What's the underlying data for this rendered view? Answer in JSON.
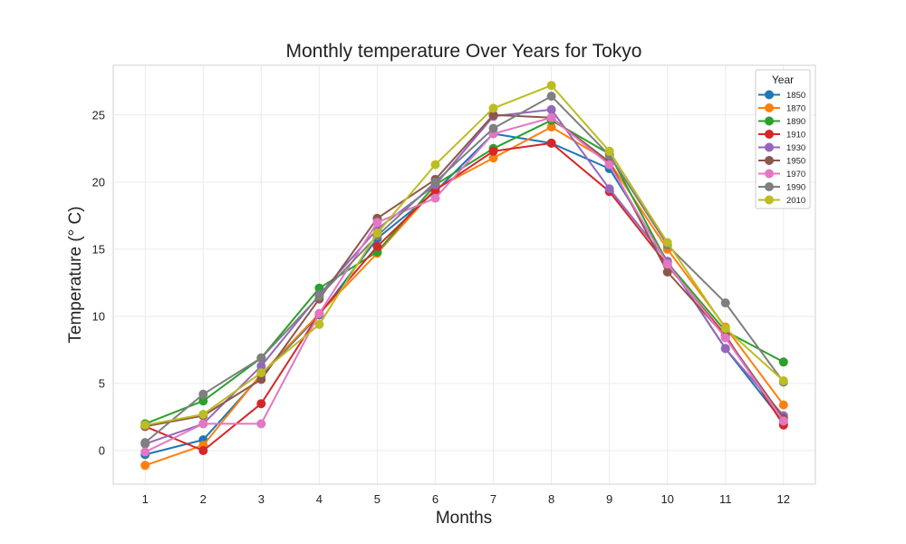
{
  "chart_data": {
    "type": "line",
    "title": "Monthly temperature Over Years for Tokyo",
    "xlabel": "Months",
    "ylabel": "Temperature (° C)",
    "x": [
      1,
      2,
      3,
      4,
      5,
      6,
      7,
      8,
      9,
      10,
      11,
      12
    ],
    "xlim": [
      0.45,
      12.55
    ],
    "ylim": [
      -2.5,
      28.7
    ],
    "yticks": [
      0,
      5,
      10,
      15,
      20,
      25
    ],
    "grid": true,
    "legend": {
      "title": "Year",
      "placement": "top-right"
    },
    "series": [
      {
        "name": "1850",
        "color": "#1f77b4",
        "values": [
          -0.3,
          0.8,
          5.6,
          10.1,
          15.8,
          19.3,
          23.6,
          22.9,
          21.0,
          14.1,
          7.6,
          2.1
        ]
      },
      {
        "name": "1870",
        "color": "#ff7f0e",
        "values": [
          -1.1,
          0.4,
          5.7,
          10.2,
          14.7,
          19.5,
          21.8,
          24.1,
          21.5,
          15.0,
          9.2,
          3.4
        ]
      },
      {
        "name": "1890",
        "color": "#2ca02c",
        "values": [
          2.0,
          3.7,
          6.9,
          12.1,
          14.8,
          19.8,
          22.5,
          24.6,
          22.1,
          14.0,
          8.9,
          6.6
        ]
      },
      {
        "name": "1910",
        "color": "#d62728",
        "values": [
          1.8,
          0.0,
          3.5,
          10.2,
          15.2,
          19.4,
          22.3,
          22.9,
          19.3,
          13.8,
          8.6,
          1.9
        ]
      },
      {
        "name": "1930",
        "color": "#9467bd",
        "values": [
          0.5,
          2.0,
          6.3,
          11.6,
          16.5,
          19.8,
          24.9,
          25.4,
          19.5,
          14.1,
          7.6,
          2.6
        ]
      },
      {
        "name": "1950",
        "color": "#8c564b",
        "values": [
          1.8,
          2.6,
          5.3,
          11.3,
          17.3,
          20.2,
          25.0,
          24.8,
          21.5,
          13.3,
          8.5,
          2.4
        ]
      },
      {
        "name": "1970",
        "color": "#e377c2",
        "values": [
          -0.1,
          2.0,
          2.0,
          10.2,
          17.0,
          18.8,
          23.6,
          24.8,
          21.3,
          13.9,
          8.4,
          2.2
        ]
      },
      {
        "name": "1990",
        "color": "#7f7f7f",
        "values": [
          0.6,
          4.2,
          6.9,
          11.5,
          16.0,
          20.0,
          24.0,
          26.4,
          22.0,
          15.3,
          11.0,
          5.1
        ]
      },
      {
        "name": "2010",
        "color": "#bcbd22",
        "values": [
          1.9,
          2.7,
          5.8,
          9.4,
          16.2,
          21.3,
          25.5,
          27.2,
          22.3,
          15.5,
          9.1,
          5.2
        ]
      }
    ]
  }
}
